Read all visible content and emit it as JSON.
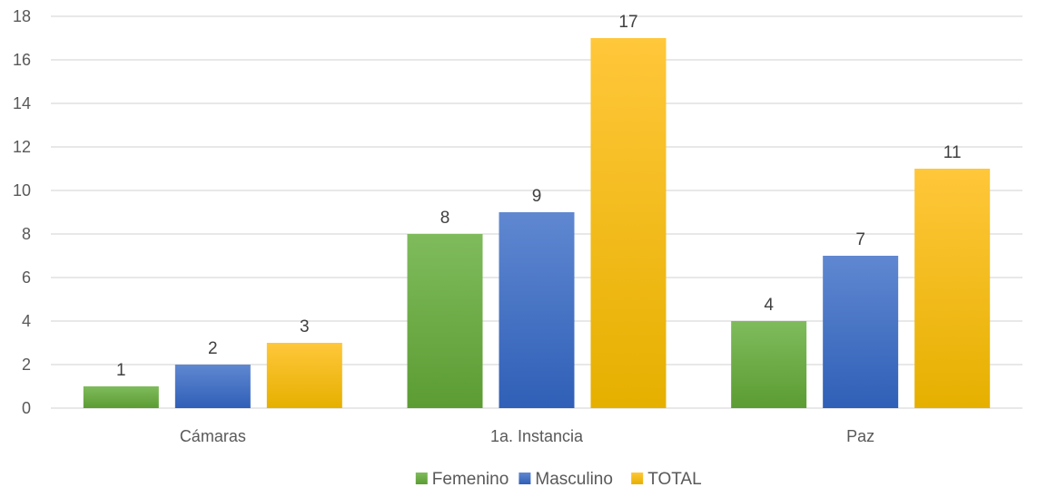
{
  "chart_data": {
    "type": "bar",
    "categories": [
      "Cámaras",
      "1a. Instancia",
      "Paz"
    ],
    "series": [
      {
        "name": "Femenino",
        "values": [
          1,
          8,
          4
        ],
        "color": "#70ad47"
      },
      {
        "name": "Masculino",
        "values": [
          2,
          9,
          7
        ],
        "color": "#4472c4"
      },
      {
        "name": "TOTAL",
        "values": [
          3,
          17,
          11
        ],
        "color": "#ffc000"
      }
    ],
    "yticks": [
      "0",
      "2",
      "4",
      "6",
      "8",
      "10",
      "12",
      "14",
      "16",
      "18"
    ],
    "ylim": [
      0,
      18
    ],
    "grid": true,
    "legend": "bottom"
  }
}
